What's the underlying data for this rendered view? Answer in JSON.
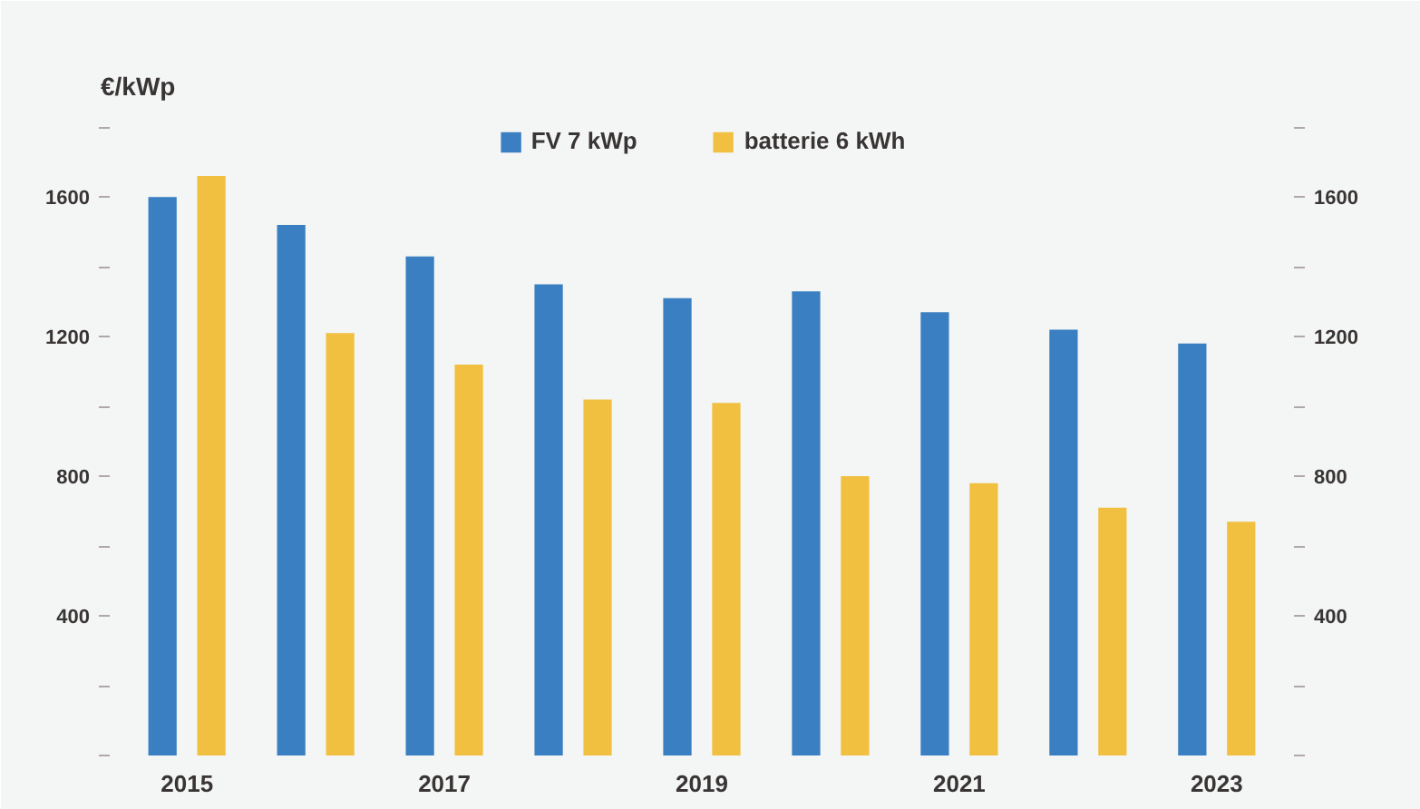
{
  "chart_data": {
    "type": "bar",
    "ylabel": "€/kWp",
    "categories": [
      "2015",
      null,
      "2017",
      null,
      "2019",
      null,
      "2021",
      null,
      "2023"
    ],
    "series": [
      {
        "name": "FV 7 kWp",
        "color": "#3a7fc1",
        "values": [
          1600,
          1520,
          1430,
          1350,
          1310,
          1330,
          1270,
          1220,
          1180
        ]
      },
      {
        "name": "batterie 6 kWh",
        "color": "#f2c040",
        "values": [
          1660,
          1210,
          1120,
          1020,
          1010,
          800,
          780,
          710,
          670
        ]
      }
    ],
    "ylim": [
      0,
      1850
    ],
    "yticks": [
      {
        "value": 0,
        "label": null
      },
      {
        "value": 200,
        "label": null
      },
      400,
      {
        "value": 600,
        "label": null
      },
      800,
      {
        "value": 1000,
        "label": null
      },
      1200,
      {
        "value": 1400,
        "label": null
      },
      1600,
      {
        "value": 1800,
        "label": null
      }
    ],
    "y2lim": [
      0,
      1850
    ],
    "y2ticks": [
      {
        "value": 0,
        "label": null
      },
      {
        "value": 200,
        "label": null
      },
      400,
      {
        "value": 600,
        "label": null
      },
      800,
      {
        "value": 1000,
        "label": null
      },
      1200,
      {
        "value": 1400,
        "label": null
      },
      1600,
      {
        "value": 1800,
        "label": null
      }
    ],
    "legend": "top",
    "grid": false
  }
}
